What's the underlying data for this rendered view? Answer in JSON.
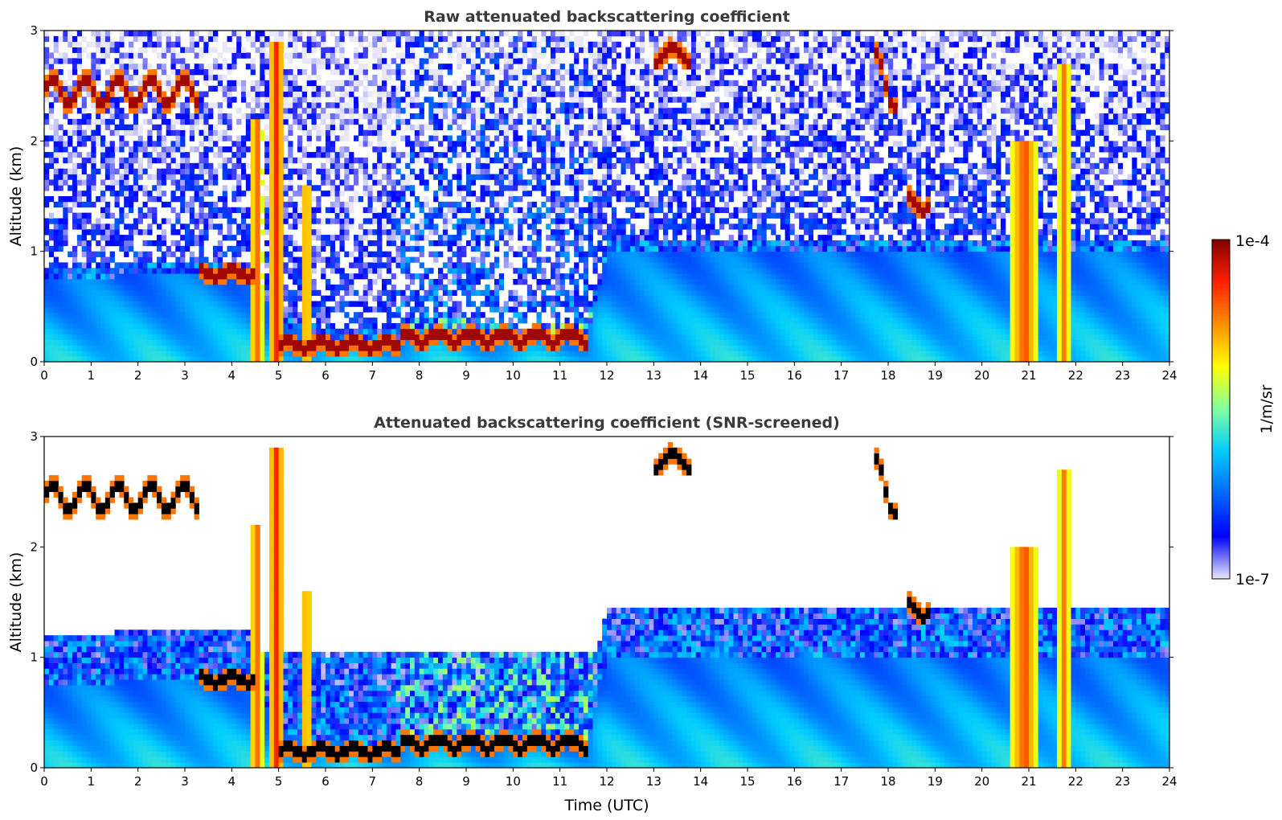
{
  "colormap": {
    "stops": [
      "#e8e8f8",
      "#0000ff",
      "#0066ff",
      "#00ccff",
      "#80ffa0",
      "#ffff00",
      "#ff9000",
      "#ff2000",
      "#800000"
    ],
    "screened_fill": "#ffffff",
    "saturated_screened": "#000000"
  },
  "colorbar": {
    "label": "1/m/sr",
    "tick_top": "1e-4",
    "tick_bottom": "1e-7",
    "log_range": [
      -7,
      -4
    ]
  },
  "chart_data": [
    {
      "type": "heatmap",
      "title": "Raw attenuated backscattering coefficient",
      "xlabel": "",
      "ylabel": "Altitude (km)",
      "xlim": [
        0,
        24
      ],
      "ylim": [
        0,
        3
      ],
      "xticks": [
        "0",
        "1",
        "2",
        "3",
        "4",
        "5",
        "6",
        "7",
        "8",
        "9",
        "10",
        "11",
        "12",
        "13",
        "14",
        "15",
        "16",
        "17",
        "18",
        "19",
        "20",
        "21",
        "22",
        "23",
        "24"
      ],
      "yticks": [
        "0",
        "1",
        "2",
        "3"
      ],
      "screened": false
    },
    {
      "type": "heatmap",
      "title": "Attenuated backscattering coefficient (SNR-screened)",
      "xlabel": "Time (UTC)",
      "ylabel": "Altitude (km)",
      "xlim": [
        0,
        24
      ],
      "ylim": [
        0,
        3
      ],
      "xticks": [
        "0",
        "1",
        "2",
        "3",
        "4",
        "5",
        "6",
        "7",
        "8",
        "9",
        "10",
        "11",
        "12",
        "13",
        "14",
        "15",
        "16",
        "17",
        "18",
        "19",
        "20",
        "21",
        "22",
        "23",
        "24"
      ],
      "yticks": [
        "0",
        "1",
        "2",
        "3"
      ],
      "screened": true
    }
  ],
  "features": {
    "boundary_layer": [
      [
        0,
        0.75
      ],
      [
        3,
        0.8
      ],
      [
        3.3,
        0.8
      ],
      [
        4.4,
        0.8
      ],
      [
        5.0,
        0.35
      ],
      [
        6,
        0.2
      ],
      [
        7.5,
        0.2
      ],
      [
        8,
        0.3
      ],
      [
        9,
        0.3
      ],
      [
        10,
        0.2
      ],
      [
        11.6,
        0.25
      ],
      [
        12,
        1.0
      ],
      [
        24,
        1.0
      ]
    ],
    "cloud_segments": [
      {
        "x0": 0.0,
        "x1": 3.3,
        "alt": 2.45,
        "amp": 0.12
      },
      {
        "x0": 3.3,
        "x1": 4.5,
        "alt": 0.8,
        "amp": 0.03
      },
      {
        "x0": 5.0,
        "x1": 7.6,
        "alt": 0.15,
        "amp": 0.03
      },
      {
        "x0": 7.6,
        "x1": 11.6,
        "alt": 0.22,
        "amp": 0.05
      },
      {
        "x0": 13.0,
        "x1": 13.8,
        "alt": 2.78,
        "amp": 0.06
      },
      {
        "x0": 18.4,
        "x1": 18.9,
        "alt": 1.45,
        "amp": 0.08
      },
      {
        "x0": 17.7,
        "x1": 18.2,
        "alt": 2.55,
        "amp": 0.25
      }
    ],
    "rain_columns": [
      {
        "x0": 4.4,
        "x1": 4.65,
        "top": 2.2
      },
      {
        "x0": 4.8,
        "x1": 5.1,
        "top": 2.9
      },
      {
        "x0": 5.5,
        "x1": 5.7,
        "top": 1.6
      },
      {
        "x0": 20.65,
        "x1": 21.2,
        "top": 2.0
      },
      {
        "x0": 21.6,
        "x1": 21.9,
        "top": 2.7
      }
    ]
  }
}
